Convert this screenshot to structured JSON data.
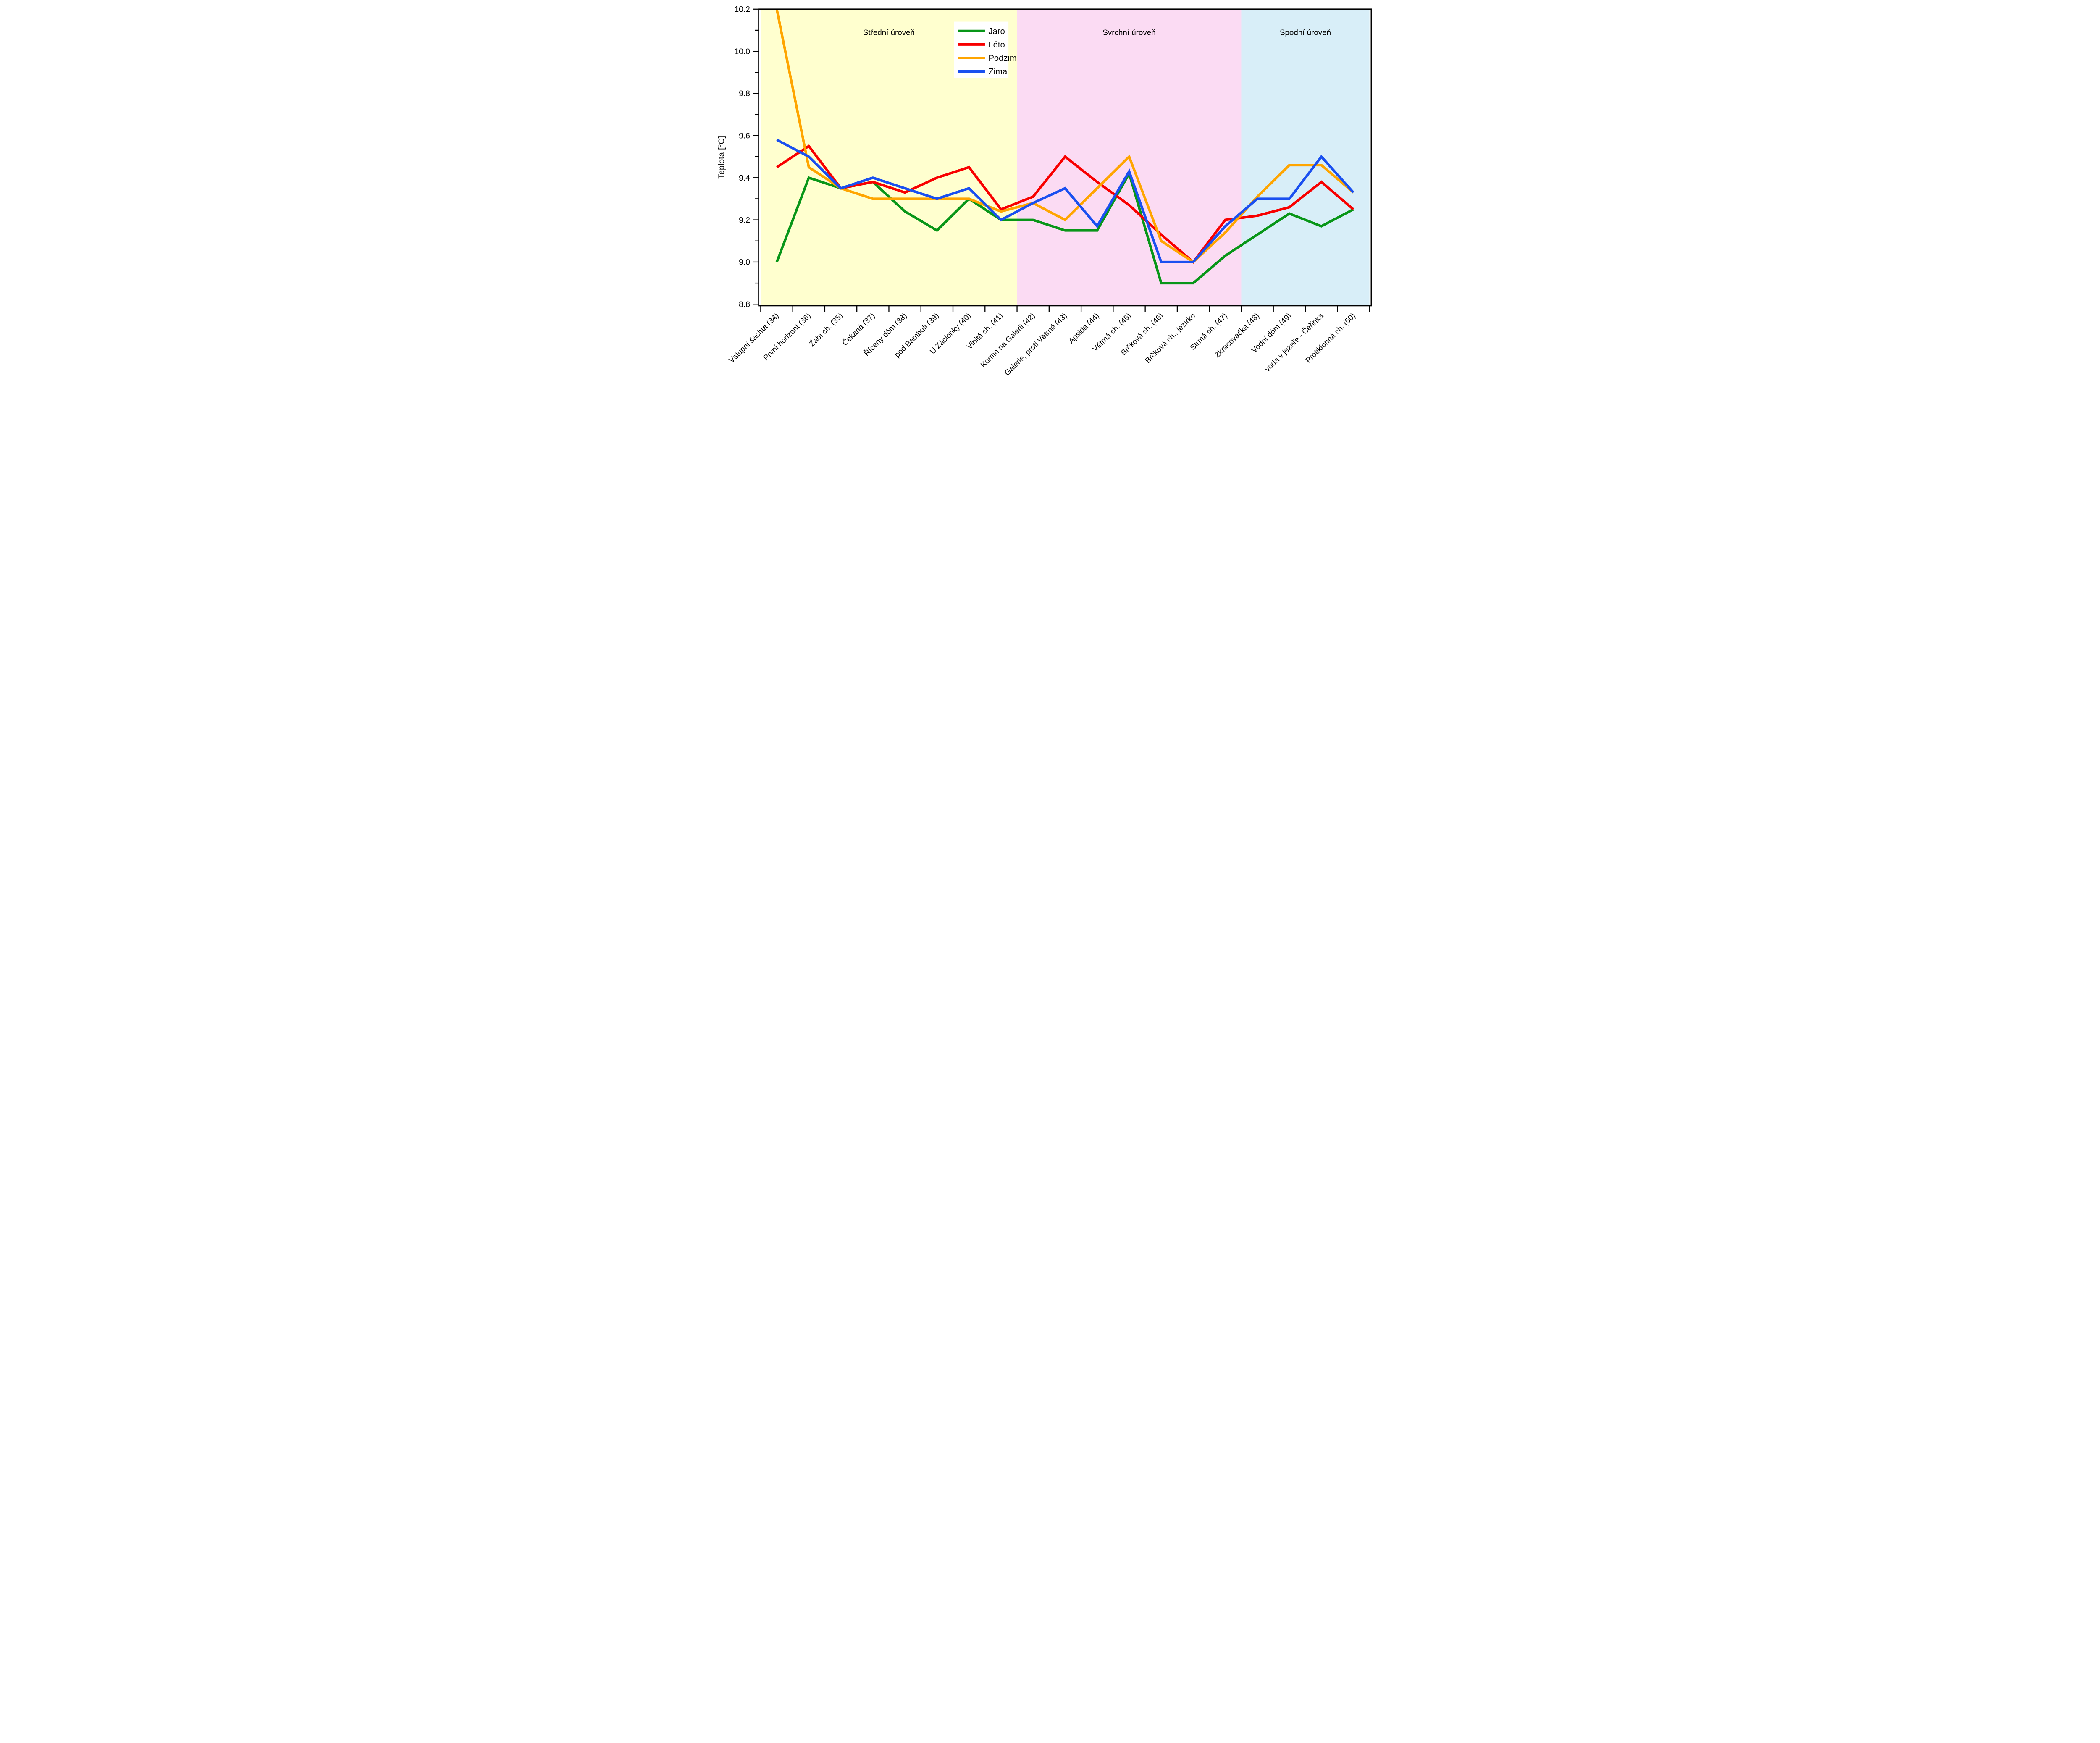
{
  "figure": {
    "background": "#ffffff",
    "type_note": "seasonal cave temperature profile line chart"
  },
  "chart_data": {
    "type": "line",
    "title": "",
    "xlabel": "",
    "ylabel": "Teplota [°C]",
    "ylim": [
      8.8,
      10.2
    ],
    "yticks": [
      8.8,
      9.0,
      9.2,
      9.4,
      9.6,
      9.8,
      10.0,
      10.2
    ],
    "grid": false,
    "legend_position": "upper left inside plot",
    "categories": [
      "Vstupní šachta (34)",
      "První horizont (36)",
      "Žabí ch. (35)",
      "Čekaná (37)",
      "Řícený dóm (38)",
      "pod Bambulí (39)",
      "U Záclonky (40)",
      "Vlnitá ch. (41)",
      "Komín na Galerii (42)",
      "Galerie, proti Větrné (43)",
      "Apsida (44)",
      "Větrná ch. (45)",
      "Brčková ch. (46)",
      "Brčková ch., jezírko",
      "Strmá ch. (47)",
      "Zkracovačka (48)",
      "Vodní dóm (49)",
      "voda v jezeře - Čeřinka",
      "Protiklonná ch. (50)"
    ],
    "series": [
      {
        "name": "Jaro",
        "color": "#089618",
        "values": [
          9.0,
          9.4,
          9.35,
          9.38,
          9.24,
          9.15,
          9.3,
          9.2,
          9.2,
          9.15,
          9.15,
          9.42,
          8.9,
          8.9,
          9.03,
          9.13,
          9.23,
          9.17,
          9.25
        ]
      },
      {
        "name": "Léto",
        "color": "#f80000",
        "values": [
          9.45,
          9.55,
          9.35,
          9.38,
          9.33,
          9.4,
          9.45,
          9.25,
          9.31,
          9.5,
          9.38,
          9.27,
          9.13,
          9.0,
          9.2,
          9.22,
          9.26,
          9.38,
          9.25
        ]
      },
      {
        "name": "Podzim",
        "color": "#ffa500",
        "values": [
          10.2,
          9.45,
          9.35,
          9.3,
          9.3,
          9.3,
          9.3,
          9.24,
          9.28,
          9.2,
          9.35,
          9.5,
          9.1,
          9.0,
          9.14,
          9.31,
          9.46,
          9.46,
          9.33
        ]
      },
      {
        "name": "Zima",
        "color": "#1a50f0",
        "values": [
          9.58,
          9.5,
          9.35,
          9.4,
          9.35,
          9.3,
          9.35,
          9.2,
          9.28,
          9.35,
          9.17,
          9.43,
          9.0,
          9.0,
          9.17,
          9.3,
          9.3,
          9.5,
          9.33
        ]
      }
    ],
    "regions": [
      {
        "label": "Střední úroveň",
        "color": "#ffffcf",
        "from_tick": 0,
        "to_tick": 8
      },
      {
        "label": "Svrchní úroveň",
        "color": "#fbdbf3",
        "from_tick": 8,
        "to_tick": 15
      },
      {
        "label": "Spodní úroveň",
        "color": "#d8eef8",
        "from_tick": 15,
        "to_tick": 19
      }
    ]
  }
}
